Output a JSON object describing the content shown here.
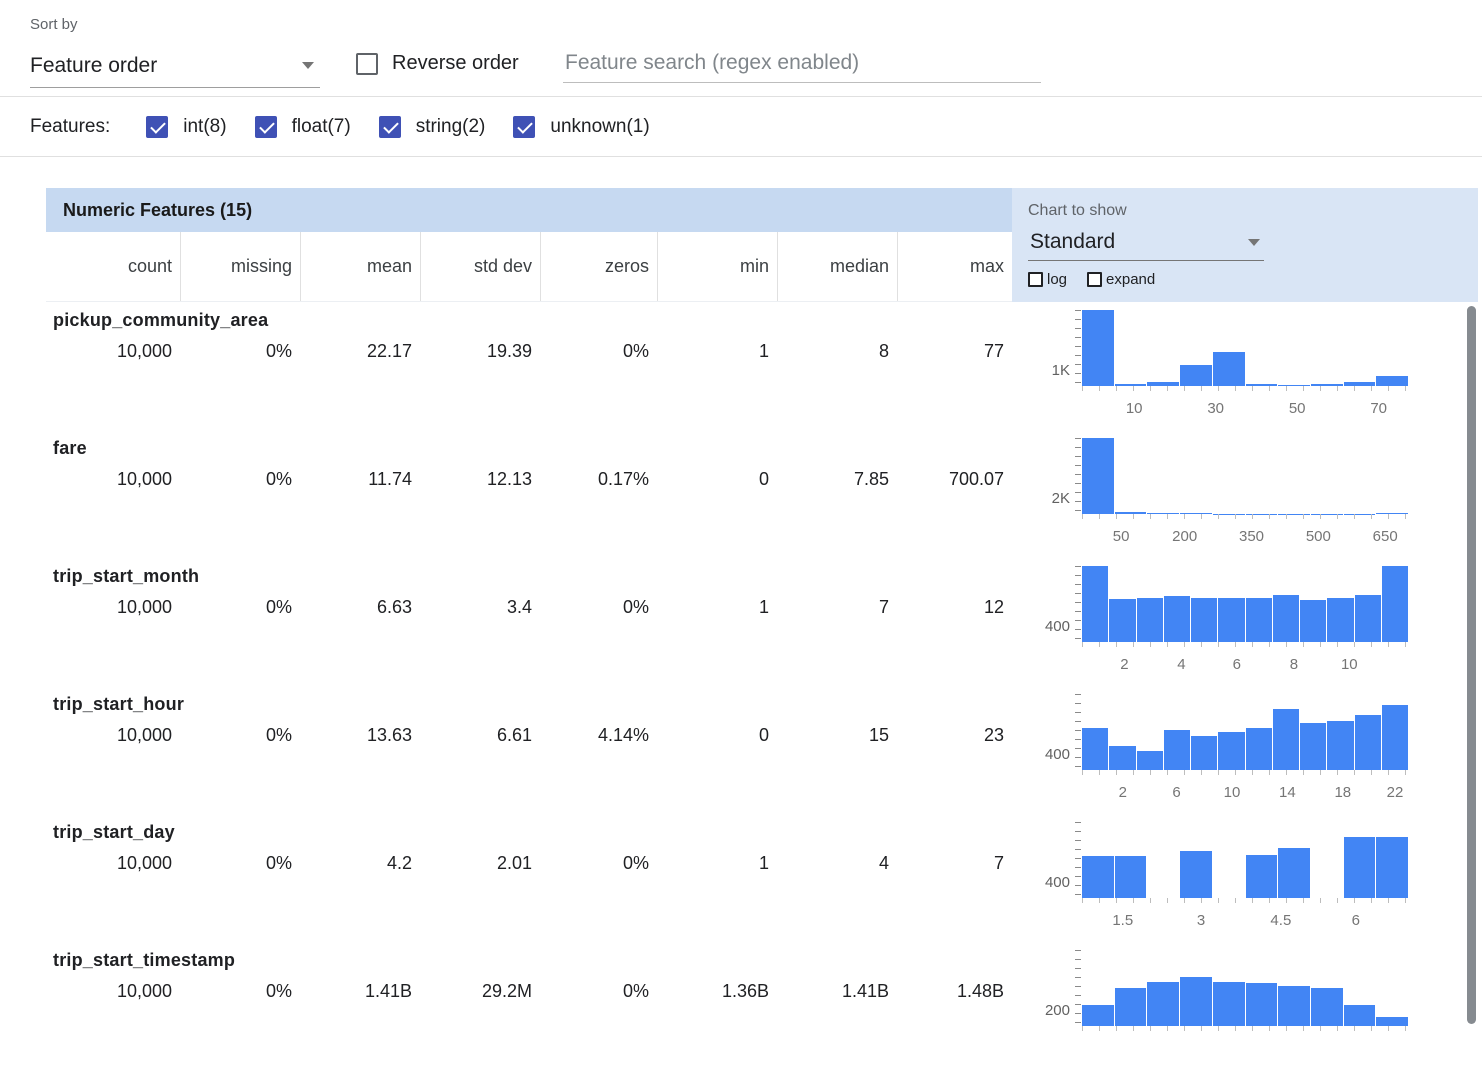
{
  "toolbar": {
    "sort_by_label": "Sort by",
    "sort_value": "Feature order",
    "reverse_order_label": "Reverse order",
    "reverse_order_checked": false,
    "search_placeholder": "Feature search (regex enabled)"
  },
  "features_bar": {
    "label": "Features:",
    "filters": [
      {
        "label": "int(8)",
        "checked": true
      },
      {
        "label": "float(7)",
        "checked": true
      },
      {
        "label": "string(2)",
        "checked": true
      },
      {
        "label": "unknown(1)",
        "checked": true
      }
    ]
  },
  "table": {
    "title": "Numeric Features (15)",
    "chart_controls": {
      "label": "Chart to show",
      "selected": "Standard",
      "log_label": "log",
      "log_checked": false,
      "expand_label": "expand",
      "expand_checked": false
    },
    "columns": [
      "count",
      "missing",
      "mean",
      "std dev",
      "zeros",
      "min",
      "median",
      "max"
    ],
    "features": [
      {
        "name": "pickup_community_area",
        "values": [
          "10,000",
          "0%",
          "22.17",
          "19.39",
          "0%",
          "1",
          "8",
          "77"
        ],
        "y_label": "1K",
        "x_ticks": [
          {
            "label": "10",
            "pos": 16
          },
          {
            "label": "30",
            "pos": 41
          },
          {
            "label": "50",
            "pos": 66
          },
          {
            "label": "70",
            "pos": 91
          }
        ],
        "bars": [
          1.0,
          0.03,
          0.05,
          0.28,
          0.45,
          0.02,
          0.01,
          0.02,
          0.05,
          0.13
        ]
      },
      {
        "name": "fare",
        "values": [
          "10,000",
          "0%",
          "11.74",
          "12.13",
          "0.17%",
          "0",
          "7.85",
          "700.07"
        ],
        "y_label": "2K",
        "x_ticks": [
          {
            "label": "50",
            "pos": 12
          },
          {
            "label": "200",
            "pos": 31.5
          },
          {
            "label": "350",
            "pos": 52
          },
          {
            "label": "500",
            "pos": 72.5
          },
          {
            "label": "650",
            "pos": 93
          }
        ],
        "bars": [
          1.0,
          0.02,
          0.01,
          0.008,
          0.006,
          0.005,
          0.005,
          0.005,
          0.006,
          0.01
        ]
      },
      {
        "name": "trip_start_month",
        "values": [
          "10,000",
          "0%",
          "6.63",
          "3.4",
          "0%",
          "1",
          "7",
          "12"
        ],
        "y_label": "400",
        "x_ticks": [
          {
            "label": "2",
            "pos": 13
          },
          {
            "label": "4",
            "pos": 30.5
          },
          {
            "label": "6",
            "pos": 47.5
          },
          {
            "label": "8",
            "pos": 65
          },
          {
            "label": "10",
            "pos": 82
          }
        ],
        "bars": [
          1.0,
          0.56,
          0.58,
          0.6,
          0.58,
          0.58,
          0.58,
          0.62,
          0.55,
          0.58,
          0.62,
          1.0
        ]
      },
      {
        "name": "trip_start_hour",
        "values": [
          "10,000",
          "0%",
          "13.63",
          "6.61",
          "4.14%",
          "0",
          "15",
          "23"
        ],
        "y_label": "400",
        "x_ticks": [
          {
            "label": "2",
            "pos": 12.5
          },
          {
            "label": "6",
            "pos": 29
          },
          {
            "label": "10",
            "pos": 46
          },
          {
            "label": "14",
            "pos": 63
          },
          {
            "label": "18",
            "pos": 80
          },
          {
            "label": "22",
            "pos": 96
          }
        ],
        "bars": [
          0.55,
          0.32,
          0.25,
          0.52,
          0.45,
          0.5,
          0.55,
          0.8,
          0.62,
          0.65,
          0.72,
          0.85
        ]
      },
      {
        "name": "trip_start_day",
        "values": [
          "10,000",
          "0%",
          "4.2",
          "2.01",
          "0%",
          "1",
          "4",
          "7"
        ],
        "y_label": "400",
        "x_ticks": [
          {
            "label": "1.5",
            "pos": 12.5
          },
          {
            "label": "3",
            "pos": 36.5
          },
          {
            "label": "4.5",
            "pos": 61
          },
          {
            "label": "6",
            "pos": 84
          }
        ],
        "bars": [
          0.55,
          0.55,
          0,
          0.62,
          0,
          0.57,
          0.66,
          0,
          0.8,
          0.8
        ]
      },
      {
        "name": "trip_start_timestamp",
        "values": [
          "10,000",
          "0%",
          "1.41B",
          "29.2M",
          "0%",
          "1.36B",
          "1.41B",
          "1.48B"
        ],
        "y_label": "200",
        "x_ticks": [],
        "bars": [
          0.28,
          0.5,
          0.58,
          0.65,
          0.58,
          0.56,
          0.52,
          0.5,
          0.28,
          0.12
        ]
      }
    ]
  },
  "colors": {
    "accent_indigo": "#3f51b5",
    "histogram_bar": "#4285f4",
    "title_band": "#c6d9f1",
    "chart_panel": "#d9e5f5"
  }
}
